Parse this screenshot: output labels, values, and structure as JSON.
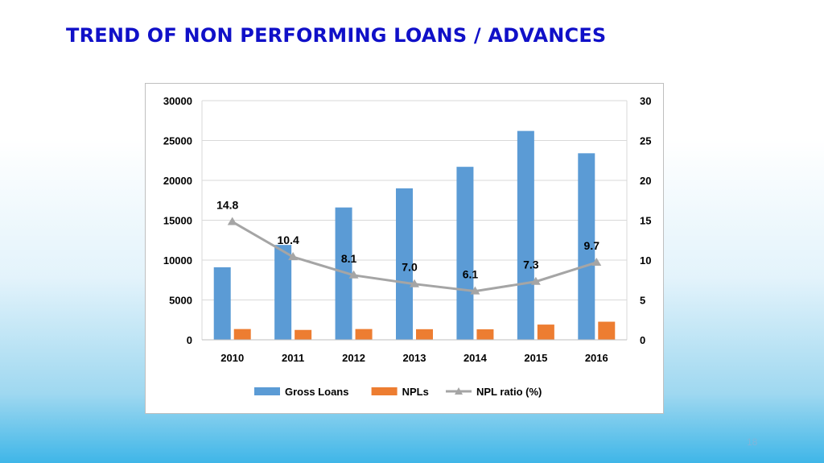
{
  "slide": {
    "title": "TREND OF NON PERFORMING LOANS / ADVANCES",
    "page_number": "18"
  },
  "chart_data": {
    "type": "bar",
    "title": "",
    "xlabel": "",
    "ylabel": "",
    "categories": [
      "2010",
      "2011",
      "2012",
      "2013",
      "2014",
      "2015",
      "2016"
    ],
    "ylim": [
      0,
      30000
    ],
    "yticks": [
      "0",
      "5000",
      "10000",
      "15000",
      "20000",
      "25000",
      "30000"
    ],
    "y2lim": [
      0,
      30
    ],
    "y2ticks": [
      "0",
      "5",
      "10",
      "15",
      "20",
      "25",
      "30"
    ],
    "grid": true,
    "legend_position": "bottom",
    "series": [
      {
        "name": "Gross Loans",
        "type": "bar",
        "axis": "left",
        "color": "#5b9bd5",
        "values": [
          9100,
          11900,
          16600,
          19000,
          21700,
          26200,
          23400
        ]
      },
      {
        "name": "NPLs",
        "type": "bar",
        "axis": "left",
        "color": "#ed7d31",
        "values": [
          1350,
          1240,
          1350,
          1330,
          1320,
          1910,
          2270
        ]
      },
      {
        "name": "NPL ratio (%)",
        "type": "line",
        "axis": "right",
        "color": "#a5a5a5",
        "values": [
          14.8,
          10.4,
          8.1,
          7.0,
          6.1,
          7.3,
          9.7
        ],
        "labels": [
          "14.8",
          "10.4",
          "8.1",
          "7.0",
          "6.1",
          "7.3",
          "9.7"
        ]
      }
    ]
  }
}
